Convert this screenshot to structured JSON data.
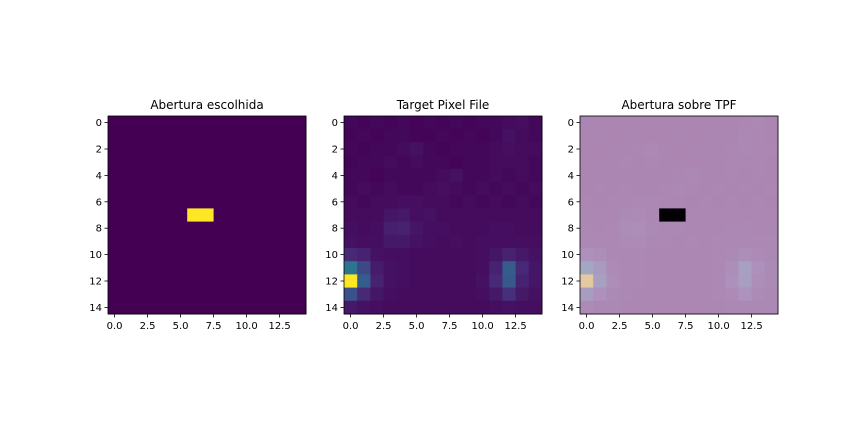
{
  "chart_data": [
    {
      "type": "heatmap",
      "title": "Abertura escolhida",
      "xlabel": "",
      "ylabel": "",
      "xlim": [
        -0.5,
        14.5
      ],
      "ylim": [
        14.5,
        -0.5
      ],
      "xticks": [
        "0.0",
        "2.5",
        "5.0",
        "7.5",
        "10.0",
        "12.5"
      ],
      "yticks": [
        "0",
        "2",
        "4",
        "6",
        "8",
        "10",
        "12",
        "14"
      ],
      "colormap": "viridis",
      "grid": false,
      "cells": [
        {
          "row": 7,
          "col": 6,
          "value": 1
        },
        {
          "row": 7,
          "col": 7,
          "value": 1
        }
      ],
      "default_value": 0
    },
    {
      "type": "heatmap",
      "title": "Target Pixel File",
      "xlabel": "",
      "ylabel": "",
      "xlim": [
        -0.5,
        14.5
      ],
      "ylim": [
        14.5,
        -0.5
      ],
      "xticks": [
        "0.0",
        "2.5",
        "5.0",
        "7.5",
        "10.0",
        "12.5"
      ],
      "yticks": [
        "0",
        "2",
        "4",
        "6",
        "8",
        "10",
        "12",
        "14"
      ],
      "colormap": "viridis",
      "grid": false,
      "values": [
        [
          0.02,
          0.01,
          0.02,
          0.01,
          0.02,
          0.01,
          0.02,
          0.01,
          0.02,
          0.01,
          0.02,
          0.02,
          0.03,
          0.04,
          0.02
        ],
        [
          0.01,
          0.02,
          0.01,
          0.02,
          0.02,
          0.01,
          0.01,
          0.02,
          0.01,
          0.02,
          0.01,
          0.02,
          0.05,
          0.03,
          0.02
        ],
        [
          0.02,
          0.01,
          0.02,
          0.02,
          0.03,
          0.05,
          0.02,
          0.01,
          0.02,
          0.02,
          0.02,
          0.03,
          0.04,
          0.03,
          0.03
        ],
        [
          0.01,
          0.02,
          0.02,
          0.03,
          0.02,
          0.03,
          0.02,
          0.02,
          0.01,
          0.02,
          0.02,
          0.03,
          0.03,
          0.03,
          0.02
        ],
        [
          0.02,
          0.02,
          0.01,
          0.02,
          0.02,
          0.02,
          0.02,
          0.03,
          0.05,
          0.02,
          0.02,
          0.03,
          0.02,
          0.03,
          0.02
        ],
        [
          0.02,
          0.03,
          0.02,
          0.03,
          0.02,
          0.02,
          0.03,
          0.04,
          0.03,
          0.02,
          0.03,
          0.02,
          0.03,
          0.02,
          0.03
        ],
        [
          0.03,
          0.02,
          0.03,
          0.03,
          0.04,
          0.04,
          0.03,
          0.03,
          0.02,
          0.03,
          0.02,
          0.03,
          0.02,
          0.03,
          0.02
        ],
        [
          0.03,
          0.03,
          0.03,
          0.06,
          0.07,
          0.04,
          0.05,
          0.03,
          0.03,
          0.03,
          0.03,
          0.03,
          0.03,
          0.03,
          0.03
        ],
        [
          0.04,
          0.03,
          0.04,
          0.09,
          0.1,
          0.06,
          0.04,
          0.04,
          0.03,
          0.03,
          0.03,
          0.04,
          0.04,
          0.03,
          0.03
        ],
        [
          0.05,
          0.04,
          0.04,
          0.07,
          0.07,
          0.05,
          0.04,
          0.03,
          0.04,
          0.03,
          0.04,
          0.04,
          0.04,
          0.04,
          0.04
        ],
        [
          0.12,
          0.1,
          0.05,
          0.04,
          0.04,
          0.03,
          0.03,
          0.03,
          0.03,
          0.03,
          0.04,
          0.06,
          0.1,
          0.07,
          0.05
        ],
        [
          0.4,
          0.22,
          0.08,
          0.05,
          0.04,
          0.03,
          0.03,
          0.03,
          0.03,
          0.03,
          0.04,
          0.1,
          0.3,
          0.12,
          0.06
        ],
        [
          1.0,
          0.3,
          0.1,
          0.05,
          0.04,
          0.03,
          0.03,
          0.03,
          0.03,
          0.03,
          0.05,
          0.12,
          0.28,
          0.1,
          0.06
        ],
        [
          0.25,
          0.12,
          0.06,
          0.04,
          0.03,
          0.03,
          0.03,
          0.03,
          0.03,
          0.03,
          0.04,
          0.07,
          0.14,
          0.07,
          0.05
        ],
        [
          0.07,
          0.05,
          0.04,
          0.03,
          0.03,
          0.03,
          0.03,
          0.03,
          0.03,
          0.03,
          0.03,
          0.04,
          0.05,
          0.04,
          0.04
        ]
      ]
    },
    {
      "type": "heatmap",
      "title": "Abertura sobre TPF",
      "xlabel": "",
      "ylabel": "",
      "xlim": [
        -0.5,
        14.5
      ],
      "ylim": [
        14.5,
        -0.5
      ],
      "xticks": [
        "0.0",
        "2.5",
        "5.0",
        "7.5",
        "10.0",
        "12.5"
      ],
      "yticks": [
        "0",
        "2",
        "4",
        "6",
        "8",
        "10",
        "12",
        "14"
      ],
      "colormap": "viridis",
      "grid": false,
      "overlay": {
        "base": "Target Pixel File",
        "overlay_alpha": 0.7,
        "overlay_cells": [
          {
            "row": 7,
            "col": 6
          },
          {
            "row": 7,
            "col": 7
          }
        ],
        "overlay_cell_color": "#000000",
        "overlay_background_color": "#d8bcd8"
      }
    }
  ]
}
